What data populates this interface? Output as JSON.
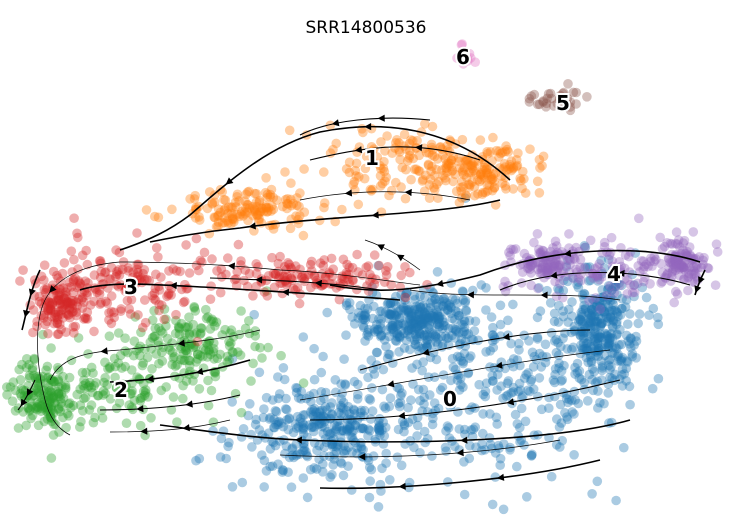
{
  "chart_data": {
    "type": "scatter",
    "subtype": "rna-velocity-stream-embedding",
    "title": "SRR14800536",
    "xlabel": "",
    "ylabel": "",
    "axes_visible": false,
    "grid": false,
    "legend": "on-data",
    "clusters": [
      {
        "label": "0",
        "color": "#1f77b4",
        "approx_share": 0.42
      },
      {
        "label": "1",
        "color": "#ff7f0e",
        "approx_share": 0.15
      },
      {
        "label": "2",
        "color": "#2ca02c",
        "approx_share": 0.14
      },
      {
        "label": "3",
        "color": "#d62728",
        "approx_share": 0.14
      },
      {
        "label": "4",
        "color": "#9467bd",
        "approx_share": 0.11
      },
      {
        "label": "5",
        "color": "#8c564b",
        "approx_share": 0.02
      },
      {
        "label": "6",
        "color": "#e377c2",
        "approx_share": 0.01
      }
    ],
    "velocity_streamlines": true,
    "dominant_flow_direction": "leftward"
  }
}
